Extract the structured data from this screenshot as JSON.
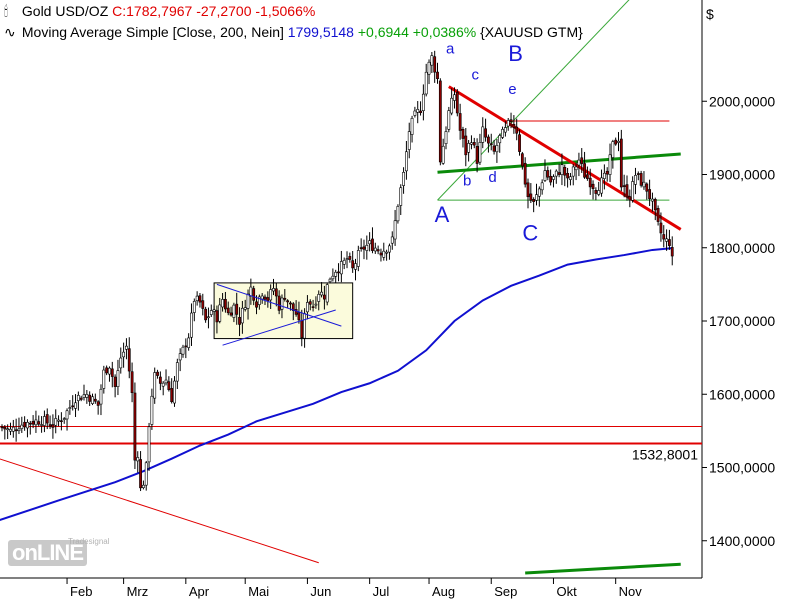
{
  "legend": {
    "instrument": "Gold USD/OZ",
    "close_text": "C:1782,7967 -27,2700 -1,5066%",
    "ma_label": "Moving Average Simple [Close, 200, Nein]",
    "ma_value": "1799,5148",
    "ma_change": "+0,6944 +0,0386%",
    "ma_symbol": "{XAUUSD GTM}"
  },
  "currency_symbol": "$",
  "logo_text": "onLINE",
  "logo_small": "Tradesignal",
  "price_label": "1532,8001",
  "colors": {
    "up": "#ffffff",
    "down": "#8b0000",
    "wick": "#000000",
    "ma": "#1010d0",
    "trend_red": "#e00000",
    "trend_green": "#0a8a0a",
    "channel_thin_green": "#3aa83a",
    "hline_red": "#e00000",
    "box_fill": "#fbfbdc"
  },
  "chart_data": {
    "type": "candlestick",
    "ylim": [
      1355,
      2110
    ],
    "yticks": [
      {
        "v": 2000,
        "label": "2000,0000"
      },
      {
        "v": 1900,
        "label": "1900,0000"
      },
      {
        "v": 1800,
        "label": "1800,0000"
      },
      {
        "v": 1700,
        "label": "1700,0000"
      },
      {
        "v": 1600,
        "label": "1600,0000"
      },
      {
        "v": 1500,
        "label": "1500,0000"
      },
      {
        "v": 1400,
        "label": "1400,0000"
      }
    ],
    "months": [
      {
        "label": "Feb",
        "d": 23
      },
      {
        "label": "Mrz",
        "d": 43
      },
      {
        "label": "Apr",
        "d": 65
      },
      {
        "label": "Mai",
        "d": 86
      },
      {
        "label": "Jun",
        "d": 108
      },
      {
        "label": "Jul",
        "d": 130
      },
      {
        "label": "Aug",
        "d": 151
      },
      {
        "label": "Sep",
        "d": 173
      },
      {
        "label": "Okt",
        "d": 195
      },
      {
        "label": "Nov",
        "d": 217
      }
    ],
    "close_path": [
      [
        0,
        1555
      ],
      [
        3,
        1550
      ],
      [
        6,
        1558
      ],
      [
        10,
        1562
      ],
      [
        14,
        1565
      ],
      [
        18,
        1558
      ],
      [
        22,
        1570
      ],
      [
        26,
        1595
      ],
      [
        30,
        1600
      ],
      [
        34,
        1585
      ],
      [
        36,
        1630
      ],
      [
        38,
        1640
      ],
      [
        40,
        1610
      ],
      [
        42,
        1650
      ],
      [
        44,
        1665
      ],
      [
        46,
        1600
      ],
      [
        47,
        1510
      ],
      [
        48,
        1520
      ],
      [
        49,
        1470
      ],
      [
        50,
        1480
      ],
      [
        51,
        1500
      ],
      [
        52,
        1560
      ],
      [
        53,
        1600
      ],
      [
        54,
        1625
      ],
      [
        56,
        1615
      ],
      [
        58,
        1620
      ],
      [
        60,
        1595
      ],
      [
        62,
        1640
      ],
      [
        64,
        1660
      ],
      [
        66,
        1680
      ],
      [
        68,
        1730
      ],
      [
        70,
        1725
      ],
      [
        72,
        1700
      ],
      [
        74,
        1715
      ],
      [
        76,
        1705
      ],
      [
        78,
        1730
      ],
      [
        80,
        1710
      ],
      [
        82,
        1720
      ],
      [
        84,
        1700
      ],
      [
        86,
        1725
      ],
      [
        88,
        1745
      ],
      [
        90,
        1725
      ],
      [
        92,
        1740
      ],
      [
        94,
        1730
      ],
      [
        96,
        1745
      ],
      [
        98,
        1720
      ],
      [
        100,
        1735
      ],
      [
        102,
        1720
      ],
      [
        104,
        1710
      ],
      [
        106,
        1680
      ],
      [
        108,
        1730
      ],
      [
        110,
        1720
      ],
      [
        112,
        1740
      ],
      [
        114,
        1735
      ],
      [
        116,
        1760
      ],
      [
        118,
        1770
      ],
      [
        120,
        1775
      ],
      [
        122,
        1785
      ],
      [
        124,
        1770
      ],
      [
        126,
        1790
      ],
      [
        128,
        1800
      ],
      [
        130,
        1805
      ],
      [
        132,
        1800
      ],
      [
        134,
        1795
      ],
      [
        136,
        1800
      ],
      [
        138,
        1810
      ],
      [
        140,
        1860
      ],
      [
        142,
        1900
      ],
      [
        144,
        1960
      ],
      [
        146,
        1980
      ],
      [
        148,
        1990
      ],
      [
        150,
        2040
      ],
      [
        152,
        2060
      ],
      [
        154,
        2030
      ],
      [
        155,
        1920
      ],
      [
        156,
        1940
      ],
      [
        158,
        1985
      ],
      [
        160,
        2010
      ],
      [
        162,
        1960
      ],
      [
        164,
        1930
      ],
      [
        166,
        1950
      ],
      [
        168,
        1920
      ],
      [
        170,
        1960
      ],
      [
        172,
        1940
      ],
      [
        174,
        1930
      ],
      [
        176,
        1950
      ],
      [
        178,
        1960
      ],
      [
        180,
        1975
      ],
      [
        182,
        1960
      ],
      [
        184,
        1910
      ],
      [
        186,
        1870
      ],
      [
        188,
        1860
      ],
      [
        190,
        1880
      ],
      [
        192,
        1905
      ],
      [
        194,
        1890
      ],
      [
        196,
        1900
      ],
      [
        198,
        1910
      ],
      [
        200,
        1890
      ],
      [
        202,
        1905
      ],
      [
        204,
        1920
      ],
      [
        206,
        1900
      ],
      [
        208,
        1890
      ],
      [
        210,
        1880
      ],
      [
        212,
        1890
      ],
      [
        214,
        1900
      ],
      [
        216,
        1940
      ],
      [
        218,
        1950
      ],
      [
        219,
        1885
      ],
      [
        220,
        1880
      ],
      [
        222,
        1870
      ],
      [
        224,
        1900
      ],
      [
        226,
        1890
      ],
      [
        228,
        1880
      ],
      [
        230,
        1860
      ],
      [
        232,
        1830
      ],
      [
        234,
        1810
      ],
      [
        236,
        1808
      ],
      [
        237,
        1783
      ]
    ],
    "ma200": [
      [
        -1,
        1428
      ],
      [
        20,
        1455
      ],
      [
        40,
        1480
      ],
      [
        50,
        1495
      ],
      [
        60,
        1512
      ],
      [
        70,
        1530
      ],
      [
        80,
        1545
      ],
      [
        90,
        1563
      ],
      [
        100,
        1575
      ],
      [
        110,
        1587
      ],
      [
        120,
        1603
      ],
      [
        130,
        1615
      ],
      [
        140,
        1632
      ],
      [
        150,
        1660
      ],
      [
        160,
        1700
      ],
      [
        170,
        1728
      ],
      [
        180,
        1748
      ],
      [
        190,
        1762
      ],
      [
        200,
        1777
      ],
      [
        210,
        1784
      ],
      [
        220,
        1790
      ],
      [
        230,
        1797
      ],
      [
        237,
        1799.5
      ]
    ],
    "hlines": [
      {
        "v": 1556,
        "color": "trend_red",
        "width": 1
      },
      {
        "v": 1532.8,
        "color": "trend_red",
        "width": 2
      }
    ],
    "box": {
      "d0": 75,
      "d1": 124,
      "y0": 1676,
      "y1": 1752
    },
    "triangle": [
      [
        [
          76,
          1750
        ],
        [
          120,
          1693
        ]
      ],
      [
        [
          78,
          1667
        ],
        [
          118,
          1715
        ]
      ]
    ],
    "channel_lines": [
      {
        "pts": [
          [
            154,
            1865
          ],
          [
            258,
            2285
          ]
        ],
        "color": "channel_thin_green",
        "width": 1
      },
      {
        "pts": [
          [
            154,
            1865
          ],
          [
            236,
            1865
          ]
        ],
        "color": "channel_thin_green",
        "width": 1
      },
      {
        "pts": [
          [
            178,
            1973
          ],
          [
            236,
            1973
          ]
        ],
        "color": "trend_red",
        "width": 1
      },
      {
        "pts": [
          [
            154,
            1903
          ],
          [
            240,
            1928
          ]
        ],
        "color": "trend_green",
        "width": 3
      },
      {
        "pts": [
          [
            158,
            2020
          ],
          [
            240,
            1825
          ]
        ],
        "color": "trend_red",
        "width": 3
      },
      {
        "pts": [
          [
            -1,
            1512
          ],
          [
            112,
            1370
          ]
        ],
        "color": "trend_red",
        "width": 1
      },
      {
        "pts": [
          [
            185,
            1356
          ],
          [
            240,
            1368
          ]
        ],
        "color": "trend_green",
        "width": 3
      }
    ],
    "wave_labels": [
      {
        "text": "a",
        "d": 157,
        "v": 2065,
        "size": 15
      },
      {
        "text": "B",
        "d": 179,
        "v": 2055,
        "size": 22
      },
      {
        "text": "c",
        "d": 166,
        "v": 2030,
        "size": 15
      },
      {
        "text": "e",
        "d": 179,
        "v": 2010,
        "size": 15
      },
      {
        "text": "b",
        "d": 163,
        "v": 1885,
        "size": 15
      },
      {
        "text": "d",
        "d": 172,
        "v": 1890,
        "size": 15
      },
      {
        "text": "A",
        "d": 153,
        "v": 1835,
        "size": 22
      },
      {
        "text": "C",
        "d": 184,
        "v": 1810,
        "size": 22
      }
    ]
  }
}
